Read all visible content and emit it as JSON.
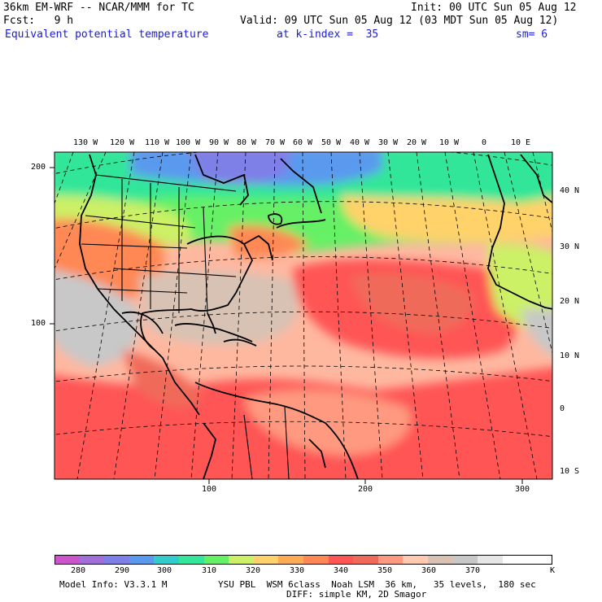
{
  "header": {
    "model": "36km EM-WRF -- NCAR/MMM for TC",
    "init": "Init: 00 UTC Sun 05 Aug 12",
    "fcst": "Fcst:   9 h",
    "valid": "Valid: 09 UTC Sun 05 Aug 12 (03 MDT Sun 05 Aug 12)",
    "field": "Equivalent potential temperature",
    "level": "at k-index =  35",
    "smoothing": "sm= 6"
  },
  "map": {
    "top_lon_labels": [
      "130 W",
      "120 W",
      "110 W",
      "100 W",
      "90 W",
      "80 W",
      "70 W",
      "60 W",
      "50 W",
      "40 W",
      "30 W",
      "20 W",
      "10 W",
      "0",
      "10 E"
    ],
    "right_lat_labels": [
      "40 N",
      "30 N",
      "20 N",
      "10 N",
      "0",
      "10 S"
    ],
    "left_grid_labels": [
      "200",
      "100"
    ],
    "bottom_grid_labels": [
      "100",
      "200",
      "300"
    ]
  },
  "colorbar": {
    "colors": [
      "#cc55cc",
      "#a070d8",
      "#7f7fe8",
      "#5a9aee",
      "#33cccc",
      "#33e699",
      "#66f066",
      "#ccf066",
      "#ffd26b",
      "#ffaa55",
      "#ff8855",
      "#ff5555",
      "#f06a5a",
      "#ff9a80",
      "#ffcab0",
      "#d8c2b4",
      "#c8c8c8",
      "#e6e6e6",
      "#ffffff",
      "#ffffff"
    ],
    "labels": [
      "280",
      "290",
      "300",
      "310",
      "320",
      "330",
      "340",
      "350",
      "360",
      "370"
    ],
    "unit": "K"
  },
  "footer": {
    "model_info": "Model Info: V3.3.1 M",
    "physics": "YSU PBL  WSM 6class  Noah LSM  36 km,   35 levels,  180 sec",
    "diffusion": "DIFF: simple KM, 2D Smagor"
  }
}
